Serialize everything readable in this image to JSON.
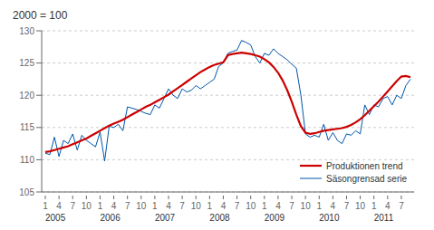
{
  "chart_data": {
    "type": "line",
    "title": "2000 = 100",
    "categories": [
      "1",
      null,
      null,
      "4",
      null,
      null,
      "7",
      null,
      null,
      "10",
      null,
      null,
      "1",
      null,
      null,
      "4",
      null,
      null,
      "7",
      null,
      null,
      "10",
      null,
      null,
      "1",
      null,
      null,
      "4",
      null,
      null,
      "7",
      null,
      null,
      "10",
      null,
      null,
      "1",
      null,
      null,
      "4",
      null,
      null,
      "7",
      null,
      null,
      "10",
      null,
      null,
      "1",
      null,
      null,
      "4",
      null,
      null,
      "7",
      null,
      null,
      "10",
      null,
      null,
      "1",
      null,
      null,
      "4",
      null,
      null,
      "7",
      null,
      null,
      "10",
      null,
      null,
      "1",
      null,
      null,
      "4",
      null,
      null,
      "7",
      null,
      null
    ],
    "series": [
      {
        "name": "Säsongrensad serie",
        "color": "#0055aa",
        "values": [
          111.0,
          110.8,
          113.5,
          110.5,
          113.0,
          112.5,
          114.0,
          111.5,
          113.8,
          113.0,
          112.5,
          112.0,
          114.3,
          109.8,
          115.2,
          115.0,
          115.5,
          114.5,
          118.2,
          118.0,
          117.8,
          117.5,
          117.2,
          117.0,
          118.5,
          118.0,
          119.5,
          121.0,
          120.0,
          119.5,
          121.0,
          120.5,
          120.8,
          121.5,
          121.0,
          121.5,
          122.0,
          122.5,
          124.5,
          125.0,
          126.5,
          126.8,
          127.0,
          128.5,
          128.2,
          127.8,
          126.0,
          125.0,
          126.5,
          126.2,
          127.2,
          126.5,
          126.0,
          125.5,
          124.8,
          124.2,
          120.0,
          114.0,
          113.5,
          113.8,
          113.5,
          115.5,
          113.0,
          114.2,
          113.0,
          112.5,
          114.0,
          113.8,
          114.5,
          114.0,
          118.5,
          117.0,
          118.5,
          118.2,
          119.5,
          119.8,
          118.5,
          120.0,
          119.5,
          121.5,
          122.5
        ]
      },
      {
        "name": "Produktionen trend",
        "color": "#cc0000",
        "values": [
          111.2,
          111.3,
          111.5,
          111.7,
          111.9,
          112.1,
          112.4,
          112.7,
          113.0,
          113.3,
          113.7,
          114.1,
          114.5,
          114.9,
          115.3,
          115.6,
          115.9,
          116.2,
          116.6,
          117.0,
          117.4,
          117.8,
          118.2,
          118.5,
          118.9,
          119.3,
          119.7,
          120.1,
          120.6,
          121.1,
          121.6,
          122.1,
          122.6,
          123.1,
          123.6,
          124.0,
          124.4,
          124.7,
          124.9,
          125.1,
          126.2,
          126.4,
          126.5,
          126.6,
          126.5,
          126.4,
          126.2,
          126.0,
          125.6,
          125.1,
          124.4,
          123.5,
          122.3,
          120.8,
          119.0,
          117.0,
          115.2,
          114.2,
          114.0,
          114.1,
          114.3,
          114.5,
          114.6,
          114.7,
          114.8,
          114.9,
          115.1,
          115.4,
          115.8,
          116.3,
          116.9,
          117.6,
          118.3,
          119.0,
          119.8,
          120.6,
          121.4,
          122.2,
          122.9,
          123.0,
          122.8
        ]
      }
    ],
    "ylim": [
      105,
      130
    ],
    "yticks": [
      105,
      110,
      115,
      120,
      125,
      130
    ],
    "grid": true,
    "legend": "lower right",
    "annotations": [
      "2005",
      "2006",
      "2007",
      "2008",
      "2009",
      "2010",
      "2011"
    ]
  }
}
